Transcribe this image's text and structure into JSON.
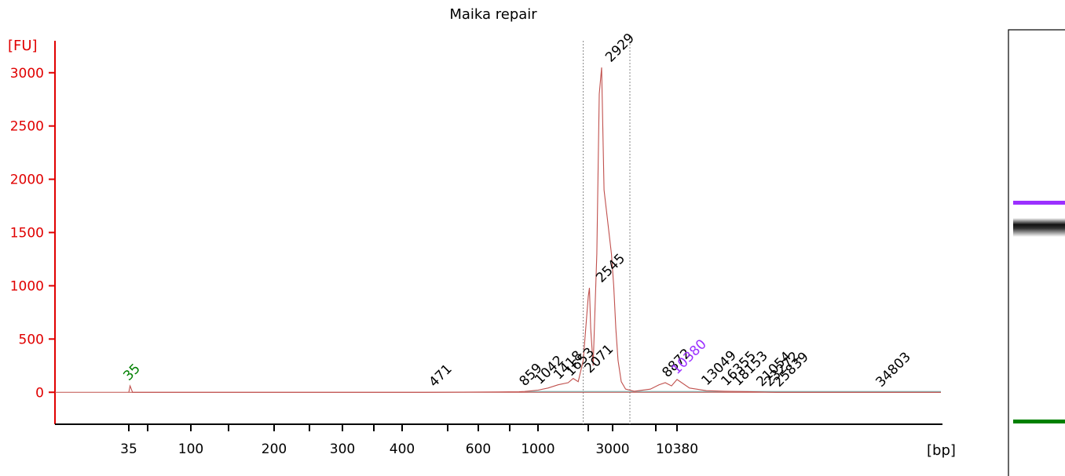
{
  "chart_data": {
    "type": "line",
    "title": "Maika repair",
    "ylabel": "[FU]",
    "xlabel": "[bp]",
    "ylim": [
      -300,
      3300
    ],
    "y_ticks": [
      0,
      500,
      1000,
      1500,
      2000,
      2500,
      3000
    ],
    "x_scale": "nonlinear (electropherogram, bp axis calibrated to ladder)",
    "x_ticks": [
      {
        "label": "35",
        "bp": 35
      },
      {
        "label": "",
        "bp": 50
      },
      {
        "label": "100",
        "bp": 100
      },
      {
        "label": "",
        "bp": 150
      },
      {
        "label": "200",
        "bp": 200
      },
      {
        "label": "",
        "bp": 250
      },
      {
        "label": "300",
        "bp": 300
      },
      {
        "label": "",
        "bp": 350
      },
      {
        "label": "400",
        "bp": 400
      },
      {
        "label": "",
        "bp": 500
      },
      {
        "label": "600",
        "bp": 600
      },
      {
        "label": "",
        "bp": 700
      },
      {
        "label": "1000",
        "bp": 1000
      },
      {
        "label": "",
        "bp": 2000
      },
      {
        "label": "3000",
        "bp": 3000
      },
      {
        "label": "",
        "bp": 7000
      },
      {
        "label": "10380",
        "bp": 10380
      }
    ],
    "series": [
      {
        "color": "#c0504d",
        "points": [
          [
            35,
            0
          ],
          [
            36,
            60
          ],
          [
            38,
            0
          ],
          [
            450,
            0
          ],
          [
            800,
            5
          ],
          [
            860,
            8
          ],
          [
            1000,
            20
          ],
          [
            1200,
            40
          ],
          [
            1400,
            70
          ],
          [
            1600,
            90
          ],
          [
            1700,
            130
          ],
          [
            1800,
            100
          ],
          [
            1900,
            300
          ],
          [
            2000,
            900
          ],
          [
            2050,
            980
          ],
          [
            2100,
            600
          ],
          [
            2200,
            250
          ],
          [
            2350,
            1300
          ],
          [
            2450,
            2800
          ],
          [
            2550,
            3050
          ],
          [
            2650,
            1900
          ],
          [
            2800,
            1600
          ],
          [
            2950,
            1300
          ],
          [
            3100,
            1000
          ],
          [
            3300,
            600
          ],
          [
            3500,
            300
          ],
          [
            3800,
            100
          ],
          [
            4200,
            30
          ],
          [
            5000,
            10
          ],
          [
            6500,
            30
          ],
          [
            7500,
            70
          ],
          [
            8500,
            90
          ],
          [
            9500,
            60
          ],
          [
            10380,
            120
          ],
          [
            11500,
            40
          ],
          [
            13000,
            15
          ],
          [
            16000,
            10
          ],
          [
            20000,
            5
          ],
          [
            25000,
            0
          ],
          [
            40000,
            0
          ]
        ]
      }
    ],
    "peak_labels": [
      {
        "text": "35",
        "bp": 35,
        "fu": 60,
        "color": "#008000"
      },
      {
        "text": "471",
        "bp": 471,
        "fu": 0,
        "color": "#000000"
      },
      {
        "text": "859",
        "bp": 859,
        "fu": 8,
        "color": "#000000"
      },
      {
        "text": "1042",
        "bp": 1042,
        "fu": 25,
        "color": "#000000"
      },
      {
        "text": "1418",
        "bp": 1418,
        "fu": 70,
        "color": "#000000"
      },
      {
        "text": "1653",
        "bp": 1653,
        "fu": 100,
        "color": "#000000"
      },
      {
        "text": "2071",
        "bp": 2071,
        "fu": 130,
        "color": "#000000"
      },
      {
        "text": "2545",
        "bp": 2545,
        "fu": 980,
        "color": "#000000"
      },
      {
        "text": "2929",
        "bp": 2929,
        "fu": 3050,
        "color": "#000000"
      },
      {
        "text": "8872",
        "bp": 8872,
        "fu": 90,
        "color": "#000000"
      },
      {
        "text": "10380",
        "bp": 10380,
        "fu": 120,
        "color": "#9b30ff"
      },
      {
        "text": "13049",
        "bp": 13049,
        "fu": 15,
        "color": "#000000"
      },
      {
        "text": "16355",
        "bp": 16355,
        "fu": 10,
        "color": "#000000"
      },
      {
        "text": "18153",
        "bp": 18153,
        "fu": 10,
        "color": "#000000"
      },
      {
        "text": "21054",
        "bp": 21054,
        "fu": 5,
        "color": "#000000"
      },
      {
        "text": "23272",
        "bp": 23272,
        "fu": 5,
        "color": "#000000"
      },
      {
        "text": "25839",
        "bp": 25839,
        "fu": 0,
        "color": "#000000"
      },
      {
        "text": "34803",
        "bp": 34803,
        "fu": 0,
        "color": "#000000"
      }
    ],
    "colors": {
      "axis": "#e00000",
      "trace": "#c0504d",
      "baseline": "#7fbfbf",
      "lower_marker": "#008000",
      "upper_marker": "#9b30ff"
    },
    "gel_lane": {
      "lower_marker_color": "#008000",
      "upper_marker_color": "#9b30ff"
    }
  }
}
